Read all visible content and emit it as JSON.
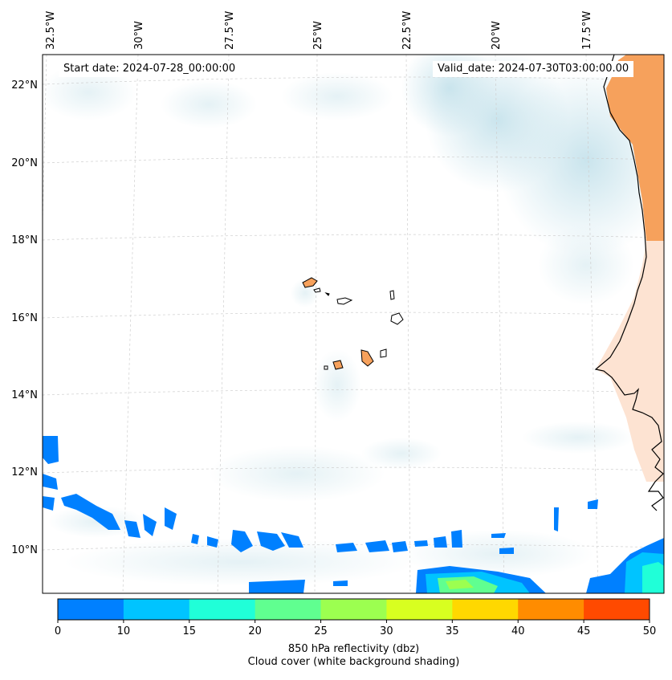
{
  "map": {
    "lon_labels": [
      "32.5°W",
      "30°W",
      "27.5°W",
      "25°W",
      "22.5°W",
      "20°W",
      "17.5°W"
    ],
    "lat_labels": [
      "22°N",
      "20°N",
      "18°N",
      "16°N",
      "14°N",
      "12°N",
      "10°N"
    ],
    "start_label": "Start date: 2024-07-28_00:00:00",
    "valid_label": "Valid_date: 2024-07-30T03:00:00.00",
    "colorbar": {
      "ticks": [
        "0",
        "10",
        "15",
        "20",
        "25",
        "30",
        "35",
        "40",
        "45",
        "50"
      ],
      "colors": [
        "#0080ff",
        "#00c4ff",
        "#20ffd8",
        "#60ff90",
        "#9cff50",
        "#d8ff20",
        "#ffd800",
        "#ff8c00",
        "#ff4a00"
      ],
      "label": "850 hPa reflectivity (dbz)",
      "sublabel": "Cloud cover (white background shading)"
    },
    "colors": {
      "land": "#f6a15c",
      "cloud": "#cfe6ee",
      "frame": "#000000",
      "grid": "#cccccc"
    }
  }
}
